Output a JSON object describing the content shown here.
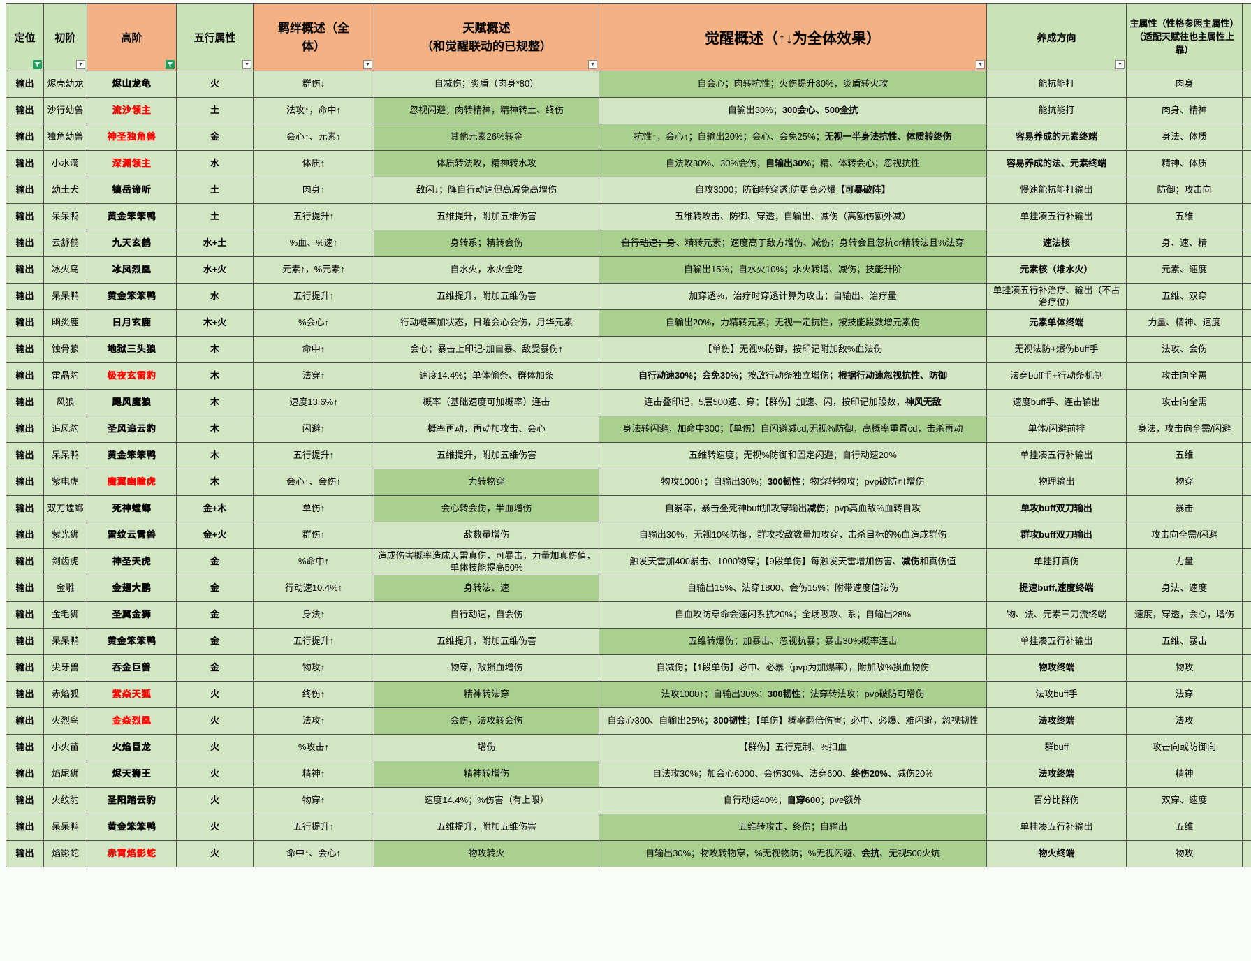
{
  "colors": {
    "header_green": "#c9e2b8",
    "header_orange": "#f4b183",
    "cell": "#d3e6c4",
    "cell_dark": "#a9d08e",
    "fire": "#f1a0ac",
    "earth": "#bf8f00",
    "metal": "#ffd966",
    "water": "#8eaadb",
    "wood": "#a9d08e",
    "name_red": "#ff0000",
    "border": "#4d4d4d",
    "filter_green": "#1d9f5f"
  },
  "header": {
    "cells": [
      {
        "label": "定位",
        "bg": "green",
        "cls": "h-std",
        "filter": "funnel"
      },
      {
        "label": "初阶",
        "bg": "green",
        "cls": "h-std",
        "filter": "arrow"
      },
      {
        "label": "高阶",
        "bg": "orange",
        "cls": "h-std",
        "filter": "funnel"
      },
      {
        "label": "五行属性",
        "bg": "green",
        "cls": "h-std",
        "filter": "arrow"
      },
      {
        "label": "羁绊概述（全\n体）",
        "bg": "orange",
        "cls": "h-bond",
        "filter": "arrow"
      },
      {
        "label": "天赋概述\n（和觉醒联动的已规整）",
        "bg": "orange",
        "cls": "h-talent",
        "filter": "arrow"
      },
      {
        "label": "觉醒概述（↑↓为全体效果）",
        "bg": "orange",
        "cls": "h-awaken",
        "filter": "arrow"
      },
      {
        "label": "养成方向",
        "bg": "green",
        "cls": "h-dir",
        "filter": "arrow"
      },
      {
        "label": "主属性（性格参照主属性）（适配天赋往也主属性上靠）",
        "bg": "green",
        "cls": "h-attr",
        "filter": ""
      },
      {
        "label": "",
        "bg": "green",
        "cls": "",
        "filter": ""
      }
    ]
  },
  "rows": [
    {
      "pos": "输出",
      "base": "烬壳幼龙",
      "name": "烬山龙龟",
      "red": 0,
      "el": "火",
      "ek": "fire",
      "bond": "群伤↓",
      "talent": "自减伤；炎盾（肉身*80）",
      "tdark": 0,
      "awaken": [
        [
          "自会心；肉转抗性；火伤提升80%，炎盾转火攻",
          ""
        ]
      ],
      "adark": 1,
      "dir": "能抗能打",
      "dbold": 0,
      "attr": "肉身"
    },
    {
      "pos": "输出",
      "base": "沙行幼兽",
      "name": "流沙领主",
      "red": 1,
      "el": "土",
      "ek": "earth",
      "bond": "法攻↑，命中↑",
      "talent": "忽视闪避；肉转精神，精神转土、终伤",
      "tdark": 1,
      "awaken": [
        [
          "自输出30%；",
          ""
        ],
        [
          "300会心、500全抗",
          "b"
        ]
      ],
      "adark": 0,
      "dir": "能抗能打",
      "dbold": 0,
      "attr": "肉身、精神"
    },
    {
      "pos": "输出",
      "base": "独角幼兽",
      "name": "神圣独角兽",
      "red": 1,
      "el": "金",
      "ek": "metal",
      "bond": "会心↑、元素↑",
      "talent": "其他元素26%转金",
      "tdark": 1,
      "awaken": [
        [
          "抗性↑，会心↑；自输出20%；会心、会免25%；",
          ""
        ],
        [
          "无视一半身法抗性、体质转终伤",
          "b"
        ]
      ],
      "adark": 1,
      "dir": "容易养成的元素终端",
      "dbold": 1,
      "attr": "身法、体质"
    },
    {
      "pos": "输出",
      "base": "小水滴",
      "name": "深渊领主",
      "red": 1,
      "el": "水",
      "ek": "water",
      "bond": "体质↑",
      "talent": "体质转法攻，精神转水攻",
      "tdark": 1,
      "awaken": [
        [
          "自法攻30%、30%会伤；",
          ""
        ],
        [
          "自输出30%",
          "b"
        ],
        [
          "；精、体转会心；忽视抗性",
          ""
        ]
      ],
      "adark": 1,
      "dir": "容易养成的法、元素终端",
      "dbold": 1,
      "attr": "精神、体质"
    },
    {
      "pos": "输出",
      "base": "幼土犬",
      "name": "镇岳谛听",
      "red": 0,
      "el": "土",
      "ek": "earth",
      "bond": "肉身↑",
      "talent": "敌闪↓；降自行动速但高减免高增伤",
      "tdark": 0,
      "awaken": [
        [
          "自攻3000；防御转穿透;防更高必爆",
          ""
        ],
        [
          "【可暴破阵】",
          "b"
        ]
      ],
      "adark": 0,
      "dir": "慢速能抗能打输出",
      "dbold": 0,
      "attr": "防御；攻击向"
    },
    {
      "pos": "输出",
      "base": "呆呆鸭",
      "name": "黄金笨笨鸭",
      "red": 0,
      "el": "土",
      "ek": "earth",
      "bond": "五行提升↑",
      "talent": "五维提升，附加五维伤害",
      "tdark": 0,
      "awaken": [
        [
          "五维转攻击、防御、穿透；自输出、减伤（高额伤额外减）",
          ""
        ]
      ],
      "adark": 0,
      "dir": "单挂凑五行补输出",
      "dbold": 0,
      "attr": "五维"
    },
    {
      "pos": "输出",
      "base": "云舒鹤",
      "name": "九天玄鹤",
      "red": 0,
      "el": "水+土",
      "ek": "mix",
      "bond": "%血、%速↑",
      "talent": "身转系；精转会伤",
      "tdark": 1,
      "awaken": [
        [
          "自行动速；身",
          "s"
        ],
        [
          "、精转元素；速度高于敌方增伤、减伤；身转会且忽抗or精转法且%法穿",
          ""
        ]
      ],
      "adark": 1,
      "dir": "速法核",
      "dbold": 1,
      "attr": "身、速、精"
    },
    {
      "pos": "输出",
      "base": "冰火鸟",
      "name": "冰凤烈凰",
      "red": 0,
      "el": "水+火",
      "ek": "mix",
      "bond": "元素↑，%元素↑",
      "talent": "自水火，水火全吃",
      "tdark": 0,
      "awaken": [
        [
          "自输出15%；自水火10%；水火转增、减伤；技能升阶",
          ""
        ]
      ],
      "adark": 1,
      "dir": "元素核（堆水火）",
      "dbold": 1,
      "attr": "元素、速度"
    },
    {
      "pos": "输出",
      "base": "呆呆鸭",
      "name": "黄金笨笨鸭",
      "red": 0,
      "el": "水",
      "ek": "water",
      "bond": "五行提升↑",
      "talent": "五维提升，附加五维伤害",
      "tdark": 0,
      "awaken": [
        [
          "加穿透%，治疗时穿透计算为攻击；自输出、治疗量",
          ""
        ]
      ],
      "adark": 0,
      "dir": "单挂凑五行补治疗、输出（不占治疗位）",
      "dbold": 0,
      "attr": "五维、双穿"
    },
    {
      "pos": "输出",
      "base": "幽炎鹿",
      "name": "日月玄鹿",
      "red": 0,
      "el": "木+火",
      "ek": "mix",
      "bond": "%会心↑",
      "talent": "行动概率加状态，日曜会心会伤，月华元素",
      "tdark": 0,
      "awaken": [
        [
          "自输出20%，力精转元素；无视一定抗性，按技能段数增元素伤",
          ""
        ]
      ],
      "adark": 1,
      "dir": "元素单体终端",
      "dbold": 1,
      "attr": "力量、精神、速度"
    },
    {
      "pos": "输出",
      "base": "蚀骨狼",
      "name": "地狱三头狼",
      "red": 0,
      "el": "木",
      "ek": "wood",
      "bond": "命中↑",
      "talent": "会心；暴击上印记-加自暴、敌受暴伤↑",
      "tdark": 0,
      "awaken": [
        [
          "【单伤】无视%防御，按印记附加敌%血法伤",
          ""
        ]
      ],
      "adark": 0,
      "dir": "无视法防+爆伤buff手",
      "dbold": 0,
      "attr": "法攻、会伤"
    },
    {
      "pos": "输出",
      "base": "雷晶豹",
      "name": "极夜玄雷豹",
      "red": 1,
      "el": "木",
      "ek": "wood",
      "bond": "法穿↑",
      "talent": "速度14.4%；单体偷条、群体加条",
      "tdark": 0,
      "awaken": [
        [
          "自行动速30%；会免30%；",
          "b"
        ],
        [
          "按敌行动条独立增伤；",
          ""
        ],
        [
          "根据行动速忽视抗性、防御",
          "b"
        ]
      ],
      "adark": 0,
      "dir": "法穿buff手+行动条机制",
      "dbold": 0,
      "attr": "攻击向全需"
    },
    {
      "pos": "输出",
      "base": "风狼",
      "name": "飓风魔狼",
      "red": 0,
      "el": "木",
      "ek": "wood",
      "bond": "速度13.6%↑",
      "talent": "概率（基础速度可加概率）连击",
      "tdark": 0,
      "awaken": [
        [
          "连击叠印记，5层500速、穿；【群伤】加速、闪，按印记加段数，",
          ""
        ],
        [
          "神风无敌",
          "b"
        ]
      ],
      "adark": 0,
      "dir": "速度buff手、连击输出",
      "dbold": 0,
      "attr": "攻击向全需"
    },
    {
      "pos": "输出",
      "base": "追风豹",
      "name": "圣风追云豹",
      "red": 0,
      "el": "木",
      "ek": "wood",
      "bond": "闪避↑",
      "talent": "概率再动，再动加攻击、会心",
      "tdark": 0,
      "awaken": [
        [
          "身法转闪避，加命中300；【单伤】自闪避减cd,无视%防御，高概率重置cd，击杀再动",
          ""
        ]
      ],
      "adark": 1,
      "dir": "单体/闪避前排",
      "dbold": 0,
      "attr": "身法，攻击向全需/闪避"
    },
    {
      "pos": "输出",
      "base": "呆呆鸭",
      "name": "黄金笨笨鸭",
      "red": 0,
      "el": "木",
      "ek": "wood",
      "bond": "五行提升↑",
      "talent": "五维提升，附加五维伤害",
      "tdark": 0,
      "awaken": [
        [
          "五维转速度；无视%防御和固定闪避；自行动速20%",
          ""
        ]
      ],
      "adark": 0,
      "dir": "单挂凑五行补输出",
      "dbold": 0,
      "attr": "五维"
    },
    {
      "pos": "输出",
      "base": "紫电虎",
      "name": "魔翼幽瞳虎",
      "red": 1,
      "el": "木",
      "ek": "wood",
      "bond": "会心↑、会伤↑",
      "talent": "力转物穿",
      "tdark": 1,
      "awaken": [
        [
          "物攻1000↑；自输出30%；",
          ""
        ],
        [
          "300韧性",
          "b"
        ],
        [
          "；物穿转物攻；pvp破防可增伤",
          ""
        ]
      ],
      "adark": 0,
      "dir": "物理输出",
      "dbold": 0,
      "attr": "物穿"
    },
    {
      "pos": "输出",
      "base": "双刀螳螂",
      "name": "死神螳螂",
      "red": 0,
      "el": "金+木",
      "ek": "mix",
      "bond": "单伤↑",
      "talent": "会心转会伤，半血增伤",
      "tdark": 1,
      "awaken": [
        [
          "自暴率，暴击叠死神buff加攻穿输出",
          ""
        ],
        [
          "减伤",
          "b"
        ],
        [
          "；pvp高血敌%血转自攻",
          ""
        ]
      ],
      "adark": 0,
      "dir": "单攻buff双刀输出",
      "dbold": 1,
      "attr": "暴击"
    },
    {
      "pos": "输出",
      "base": "紫光狮",
      "name": "雷纹云霄兽",
      "red": 0,
      "el": "金+火",
      "ek": "mix",
      "bond": "群伤↑",
      "talent": "敌数量增伤",
      "tdark": 0,
      "awaken": [
        [
          "自输出30%，无视10%防御，群攻按敌数量加攻穿，击杀目标的%血造成群伤",
          ""
        ]
      ],
      "adark": 0,
      "dir": "群攻buff双刀输出",
      "dbold": 1,
      "attr": "攻击向全需/闪避"
    },
    {
      "pos": "输出",
      "base": "剑齿虎",
      "name": "神圣天虎",
      "red": 0,
      "el": "金",
      "ek": "metal",
      "bond": "%命中↑",
      "talent": "造成伤害概率造成天雷真伤，可暴击，力量加真伤值，单体技能提高50%",
      "tdark": 0,
      "awaken": [
        [
          "触发天雷加400暴击、1000物穿；【9段单伤】每触发天雷增加伤害、",
          ""
        ],
        [
          "减伤",
          "b"
        ],
        [
          "和真伤值",
          ""
        ]
      ],
      "adark": 0,
      "dir": "单挂打真伤",
      "dbold": 0,
      "attr": "力量"
    },
    {
      "pos": "输出",
      "base": "金雕",
      "name": "金翅大鹏",
      "red": 0,
      "el": "金",
      "ek": "metal",
      "bond": "行动速10.4%↑",
      "talent": "身转法、速",
      "tdark": 1,
      "awaken": [
        [
          "自输出15%、法穿1800、会伤15%；附带速度值法伤",
          ""
        ]
      ],
      "adark": 0,
      "dir": "提速buff,速度终端",
      "dbold": 1,
      "attr": "身法、速度"
    },
    {
      "pos": "输出",
      "base": "金毛狮",
      "name": "圣翼金狮",
      "red": 0,
      "el": "金",
      "ek": "metal",
      "bond": "身法↑",
      "talent": "自行动速，自会伤",
      "tdark": 0,
      "awaken": [
        [
          "自血攻防穿命会速闪系抗20%；全场吸攻、系；自输出28%",
          ""
        ]
      ],
      "adark": 0,
      "dir": "物、法、元素三刀流终端",
      "dbold": 0,
      "attr": "速度，穿透，会心，增伤"
    },
    {
      "pos": "输出",
      "base": "呆呆鸭",
      "name": "黄金笨笨鸭",
      "red": 0,
      "el": "金",
      "ek": "metal",
      "bond": "五行提升↑",
      "talent": "五维提升，附加五维伤害",
      "tdark": 0,
      "awaken": [
        [
          "五维转爆伤；加暴击、忽视抗暴；暴击30%概率连击",
          ""
        ]
      ],
      "adark": 1,
      "dir": "单挂凑五行补输出",
      "dbold": 0,
      "attr": "五维、暴击"
    },
    {
      "pos": "输出",
      "base": "尖牙兽",
      "name": "吞金巨兽",
      "red": 0,
      "el": "金",
      "ek": "metal",
      "bond": "物攻↑",
      "talent": "物穿，敌损血增伤",
      "tdark": 0,
      "awaken": [
        [
          "自减伤；【1段单伤】必中、必暴（pvp为加爆率），附加敌%损血物伤",
          ""
        ]
      ],
      "adark": 0,
      "dir": "物攻终端",
      "dbold": 1,
      "attr": "物攻"
    },
    {
      "pos": "输出",
      "base": "赤焰狐",
      "name": "紫焱天狐",
      "red": 1,
      "el": "火",
      "ek": "fire",
      "bond": "终伤↑",
      "talent": "精神转法穿",
      "tdark": 1,
      "awaken": [
        [
          "法攻1000↑；自输出30%；",
          ""
        ],
        [
          "300韧性",
          "b"
        ],
        [
          "；法穿转法攻；pvp破防可增伤",
          ""
        ]
      ],
      "adark": 1,
      "dir": "法攻buff手",
      "dbold": 0,
      "attr": "法穿"
    },
    {
      "pos": "输出",
      "base": "火烈鸟",
      "name": "金焱烈凰",
      "red": 1,
      "el": "火",
      "ek": "fire",
      "bond": "法攻↑",
      "talent": "会伤，法攻转会伤",
      "tdark": 1,
      "awaken": [
        [
          "自会心300、自输出25%；",
          ""
        ],
        [
          "300韧性",
          "b"
        ],
        [
          "；【单伤】概率翻倍伤害；必中、必爆、难闪避，忽视韧性",
          ""
        ]
      ],
      "adark": 0,
      "dir": "法攻终端",
      "dbold": 1,
      "attr": "法攻"
    },
    {
      "pos": "输出",
      "base": "小火苗",
      "name": "火焰巨龙",
      "red": 0,
      "el": "火",
      "ek": "fire",
      "bond": "%攻击↑",
      "talent": "增伤",
      "tdark": 0,
      "awaken": [
        [
          "【群伤】五行克制、%扣血",
          ""
        ]
      ],
      "adark": 0,
      "dir": "群buff",
      "dbold": 0,
      "attr": "攻击向或防御向"
    },
    {
      "pos": "输出",
      "base": "焰尾狮",
      "name": "烬天狮王",
      "red": 0,
      "el": "火",
      "ek": "fire",
      "bond": "精神↑",
      "talent": "精神转增伤",
      "tdark": 1,
      "awaken": [
        [
          "自法攻30%；加会心6000、会伤30%、法穿600、",
          ""
        ],
        [
          "终伤20%",
          "b"
        ],
        [
          "、减伤20%",
          ""
        ]
      ],
      "adark": 0,
      "dir": "法攻终端",
      "dbold": 1,
      "attr": "精神"
    },
    {
      "pos": "输出",
      "base": "火纹豹",
      "name": "圣阳踏云豹",
      "red": 0,
      "el": "火",
      "ek": "fire",
      "bond": "物穿↑",
      "talent": "速度14.4%；%伤害（有上限）",
      "tdark": 0,
      "awaken": [
        [
          "自行动速40%；",
          ""
        ],
        [
          "自穿600",
          "b"
        ],
        [
          "；pve额外",
          ""
        ]
      ],
      "adark": 0,
      "dir": "百分比群伤",
      "dbold": 0,
      "attr": "双穿、速度"
    },
    {
      "pos": "输出",
      "base": "呆呆鸭",
      "name": "黄金笨笨鸭",
      "red": 0,
      "el": "火",
      "ek": "fire",
      "bond": "五行提升↑",
      "talent": "五维提升，附加五维伤害",
      "tdark": 0,
      "awaken": [
        [
          "五维转攻击、终伤；自输出",
          ""
        ]
      ],
      "adark": 1,
      "dir": "单挂凑五行补输出",
      "dbold": 0,
      "attr": "五维"
    },
    {
      "pos": "输出",
      "base": "焰影蛇",
      "name": "赤霄焰影蛇",
      "red": 1,
      "el": "火",
      "ek": "fire",
      "bond": "命中↑、会心↑",
      "talent": "物攻转火",
      "tdark": 1,
      "awaken": [
        [
          "自输出30%；物攻转物穿，%无视物防；%无视闪避、",
          ""
        ],
        [
          "会抗",
          "b"
        ],
        [
          "、无视500火炕",
          ""
        ]
      ],
      "adark": 1,
      "dir": "物火终端",
      "dbold": 1,
      "attr": "物攻"
    }
  ]
}
